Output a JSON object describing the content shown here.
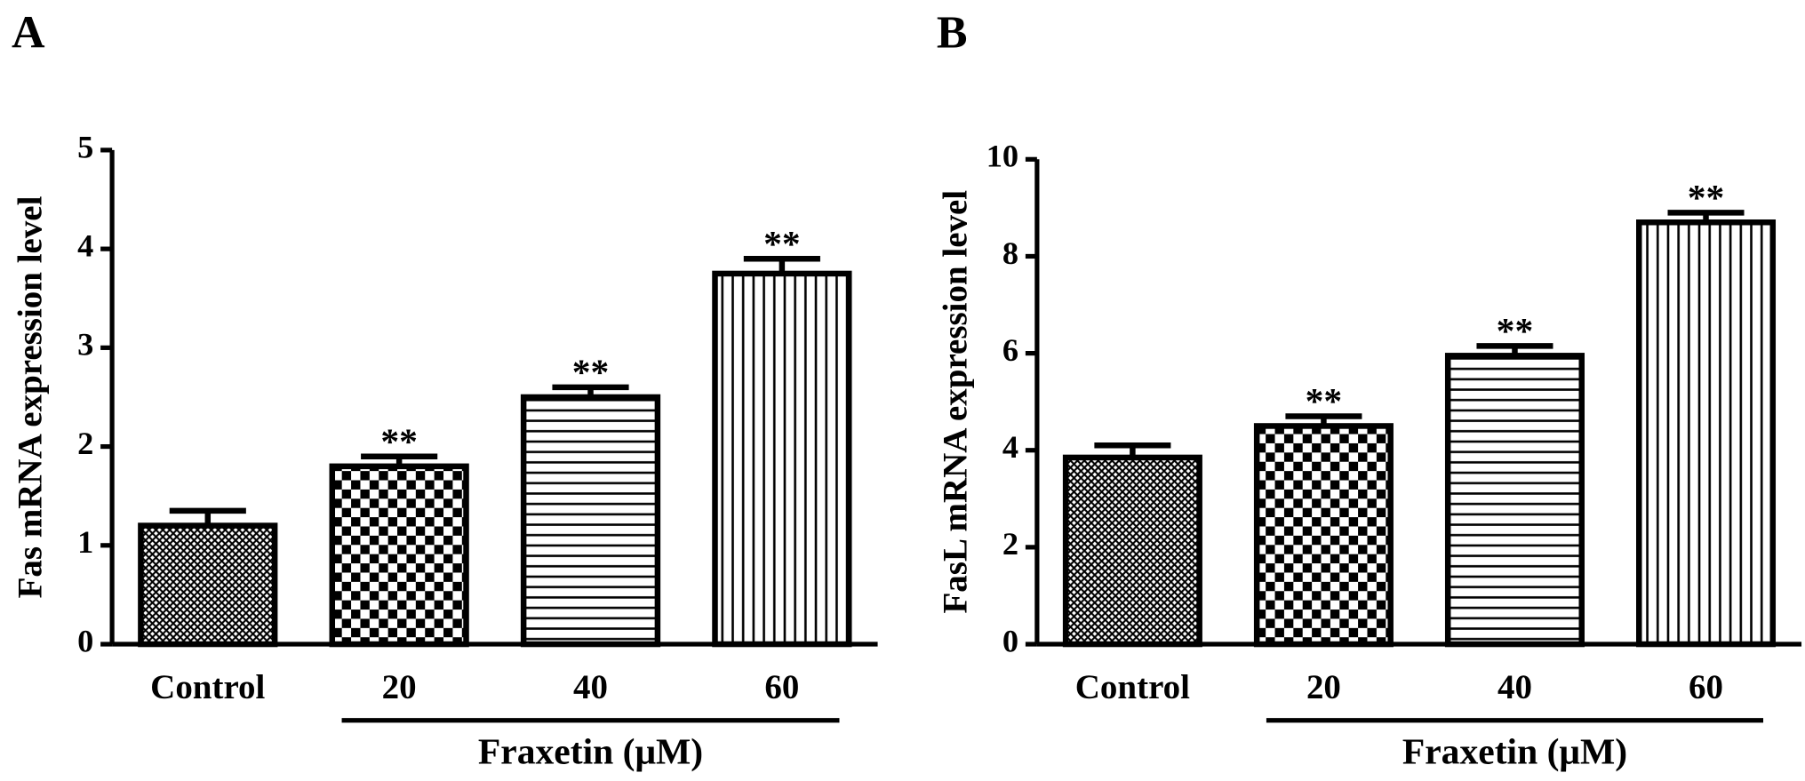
{
  "chart_data": [
    {
      "type": "bar",
      "panel": "A",
      "ylabel": "Fas mRNA expression level",
      "categories": [
        "Control",
        "20",
        "40",
        "60"
      ],
      "values": [
        1.2,
        1.8,
        2.5,
        3.75
      ],
      "errors": [
        0.15,
        0.1,
        0.1,
        0.15
      ],
      "significance": [
        null,
        "**",
        "**",
        "**"
      ],
      "patterns": [
        "dots",
        "checker",
        "hlines",
        "vlines"
      ],
      "group_label": "Fraxetin (μM)",
      "ylim": [
        0,
        5
      ],
      "yticks": [
        0,
        1,
        2,
        3,
        4,
        5
      ],
      "color": "#000000"
    },
    {
      "type": "bar",
      "panel": "B",
      "ylabel": "FasL mRNA expression level",
      "categories": [
        "Control",
        "20",
        "40",
        "60"
      ],
      "values": [
        3.85,
        4.5,
        5.95,
        8.7
      ],
      "errors": [
        0.25,
        0.2,
        0.2,
        0.2
      ],
      "significance": [
        null,
        "**",
        "**",
        "**"
      ],
      "patterns": [
        "dots",
        "checker",
        "hlines",
        "vlines"
      ],
      "group_label": "Fraxetin (μM)",
      "ylim": [
        0,
        10
      ],
      "yticks": [
        0,
        2,
        4,
        6,
        8,
        10
      ],
      "color": "#000000"
    }
  ]
}
